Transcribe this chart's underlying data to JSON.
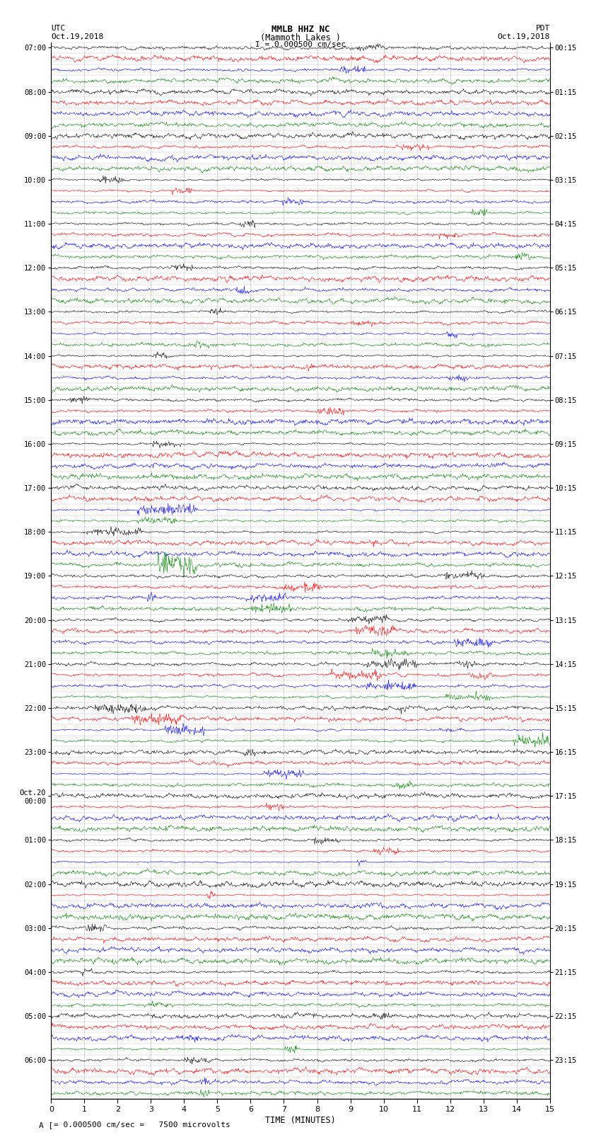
{
  "title_line1": "MMLB HHZ NC",
  "title_line2": "(Mammoth Lakes )",
  "scale_label": "I = 0.000500 cm/sec",
  "bottom_label": "= 0.000500 cm/sec =   7500 microvolts",
  "xlabel": "TIME (MINUTES)",
  "left_label_line1": "UTC",
  "left_label_line2": "Oct.19,2018",
  "right_label_line1": "PDT",
  "right_label_line2": "Oct.19,2018",
  "utc_hour_labels": [
    "07:00",
    "08:00",
    "09:00",
    "10:00",
    "11:00",
    "12:00",
    "13:00",
    "14:00",
    "15:00",
    "16:00",
    "17:00",
    "18:00",
    "19:00",
    "20:00",
    "21:00",
    "22:00",
    "23:00",
    "Oct.20\n00:00",
    "01:00",
    "02:00",
    "03:00",
    "04:00",
    "05:00",
    "06:00"
  ],
  "pdt_hour_labels": [
    "00:15",
    "01:15",
    "02:15",
    "03:15",
    "04:15",
    "05:15",
    "06:15",
    "07:15",
    "08:15",
    "09:15",
    "10:15",
    "11:15",
    "12:15",
    "13:15",
    "14:15",
    "15:15",
    "16:15",
    "17:15",
    "18:15",
    "19:15",
    "20:15",
    "21:15",
    "22:15",
    "23:15"
  ],
  "colors": [
    "black",
    "red",
    "blue",
    "green"
  ],
  "n_hours": 24,
  "traces_per_hour": 4,
  "n_samples": 900,
  "xmin": 0,
  "xmax": 15,
  "bg_color": "#ffffff",
  "grid_color": "#999999",
  "trace_amp": 0.38
}
